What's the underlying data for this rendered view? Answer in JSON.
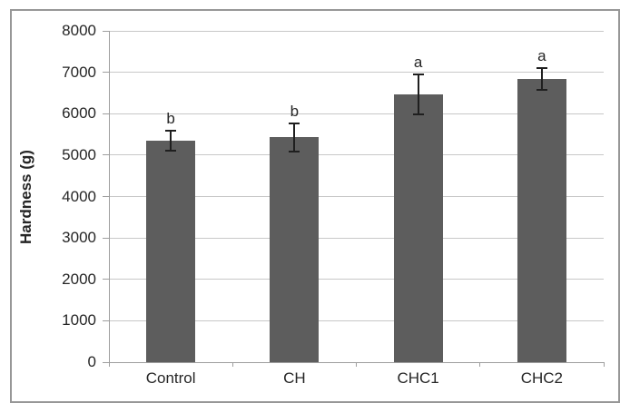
{
  "chart_data": {
    "type": "bar",
    "title": "",
    "xlabel": "",
    "ylabel": "Hardness (g)",
    "categories": [
      "Control",
      "CH",
      "CHC1",
      "CHC2"
    ],
    "series": [
      {
        "name": "Hardness",
        "values": [
          5350,
          5430,
          6460,
          6830
        ],
        "errors": [
          240,
          345,
          485,
          265
        ],
        "sig_letters": [
          "b",
          "b",
          "a",
          "a"
        ]
      }
    ],
    "ylim": [
      0,
      8000
    ],
    "ytick_step": 1000,
    "ytick_labels": [
      "0",
      "1000",
      "2000",
      "3000",
      "4000",
      "5000",
      "6000",
      "7000",
      "8000"
    ],
    "grid": "horizontal",
    "legend_position": "none",
    "colors": {
      "bar": "#5d5d5d",
      "gridline": "#c8c8c8",
      "axis": "#9e9e9e",
      "error_bar": "#1f1f1f",
      "text": "#262626",
      "frame_border": "#979797",
      "background": "#ffffff"
    }
  }
}
